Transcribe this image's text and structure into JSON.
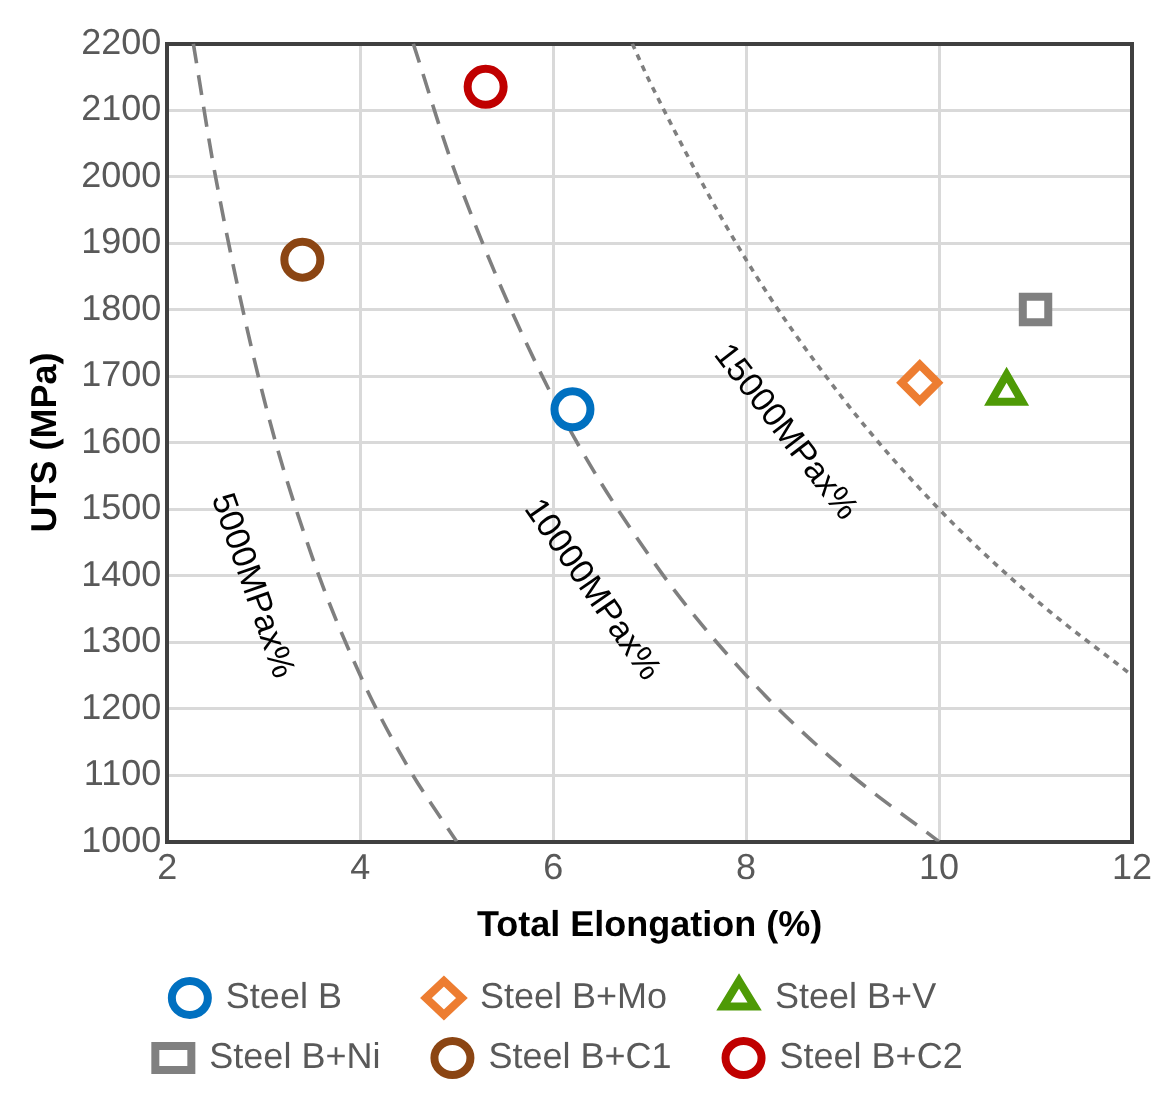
{
  "chart_data": {
    "type": "scatter",
    "xlabel": "Total Elongation (%)",
    "ylabel": "UTS (MPa)",
    "xlim": [
      2,
      12
    ],
    "xticks": [
      2,
      4,
      6,
      8,
      10,
      12
    ],
    "ylim": [
      1000,
      2200
    ],
    "yticks": [
      1000,
      1100,
      1200,
      1300,
      1400,
      1500,
      1600,
      1700,
      1800,
      1900,
      2000,
      2100,
      2200
    ],
    "grid": true,
    "legend": "bottom",
    "series": [
      {
        "name": "Steel B",
        "color": "#0070c0",
        "marker": "circle",
        "x": [
          6.2
        ],
        "values": [
          1650
        ]
      },
      {
        "name": "Steel B+Mo",
        "color": "#ed7d31",
        "marker": "diamond",
        "x": [
          9.8
        ],
        "values": [
          1690
        ]
      },
      {
        "name": "Steel B+V",
        "color": "#4e9a06",
        "marker": "triangle",
        "x": [
          10.7
        ],
        "values": [
          1675
        ]
      },
      {
        "name": "Steel B+Ni",
        "color": "#808080",
        "marker": "square",
        "x": [
          11.0
        ],
        "values": [
          1800
        ]
      },
      {
        "name": "Steel B+C1",
        "color": "#8b4513",
        "marker": "circle",
        "x": [
          3.4
        ],
        "values": [
          1875
        ]
      },
      {
        "name": "Steel B+C2",
        "color": "#c00000",
        "marker": "circle",
        "x": [
          5.3
        ],
        "values": [
          2135
        ]
      },
      {
        "name": "5000MPax%",
        "type": "line",
        "color": "#7f7f7f",
        "marker": "none",
        "line_style": "dashed",
        "x": [
          2.27,
          2.5,
          3,
          3.5,
          4,
          4.5,
          5
        ],
        "values": [
          2200,
          2000,
          1667,
          1429,
          1250,
          1111,
          1000
        ]
      },
      {
        "name": "10000MPax%",
        "type": "line",
        "color": "#7f7f7f",
        "marker": "none",
        "line_style": "dashed",
        "x": [
          4.55,
          5,
          6,
          7,
          8,
          9,
          10
        ],
        "values": [
          2200,
          2000,
          1667,
          1429,
          1250,
          1111,
          1000
        ]
      },
      {
        "name": "15000MPax%",
        "type": "line",
        "color": "#7f7f7f",
        "marker": "none",
        "line_style": "dotted",
        "x": [
          6.82,
          7,
          8,
          9,
          10,
          11,
          12
        ],
        "values": [
          2200,
          2143,
          1875,
          1667,
          1500,
          1364,
          1250
        ]
      }
    ]
  }
}
